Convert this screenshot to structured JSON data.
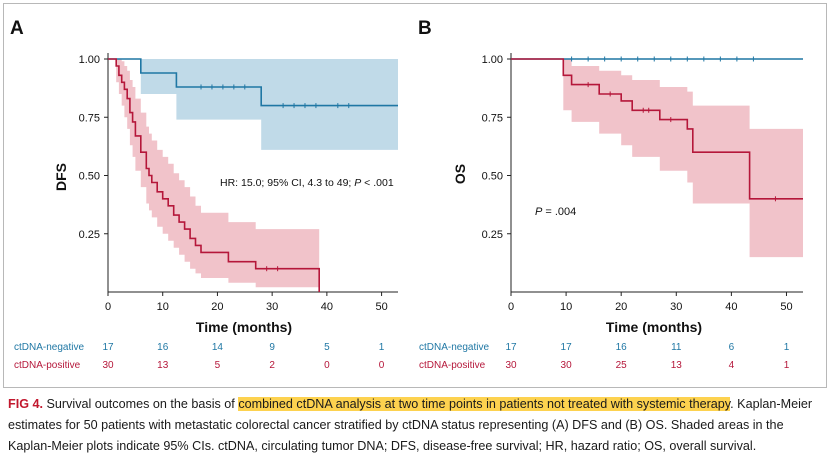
{
  "chart_data": [
    {
      "type": "line",
      "panel_label": "A",
      "ylabel": "DFS",
      "xlabel": "Time (months)",
      "xlim": [
        0,
        53
      ],
      "ylim": [
        0,
        1
      ],
      "xticks": [
        "0",
        "10",
        "20",
        "30",
        "40",
        "50"
      ],
      "yticks": [
        "0.25",
        "0.50",
        "0.75",
        "1.00"
      ],
      "annotation_prefix": "HR: 15.0; 95% CI, 4.3 to 49; ",
      "annotation_p": "P",
      "annotation_suffix": " < .001",
      "series": [
        {
          "name": "ctDNA-negative",
          "color": "#1f77a4",
          "band_color": "#b9d6e6",
          "steps": [
            [
              0,
              1.0
            ],
            [
              6,
              0.94
            ],
            [
              12.5,
              0.88
            ],
            [
              28,
              0.8
            ],
            [
              53,
              0.8
            ]
          ],
          "ci_upper": [
            [
              0,
              1.0
            ],
            [
              53,
              1.0
            ]
          ],
          "ci_lower": [
            [
              0,
              1.0
            ],
            [
              6,
              0.85
            ],
            [
              12.5,
              0.74
            ],
            [
              28,
              0.61
            ],
            [
              53,
              0.61
            ]
          ],
          "censor_times": [
            17,
            19,
            21,
            23,
            25,
            32,
            34,
            36,
            38,
            42,
            44
          ]
        },
        {
          "name": "ctDNA-positive",
          "color": "#b5173a",
          "band_color": "#efbcc4",
          "steps": [
            [
              0,
              1.0
            ],
            [
              1.5,
              0.97
            ],
            [
              2,
              0.93
            ],
            [
              2.5,
              0.9
            ],
            [
              3,
              0.87
            ],
            [
              3.5,
              0.83
            ],
            [
              4,
              0.77
            ],
            [
              4.5,
              0.73
            ],
            [
              5,
              0.67
            ],
            [
              6,
              0.6
            ],
            [
              7,
              0.53
            ],
            [
              7.5,
              0.5
            ],
            [
              8,
              0.47
            ],
            [
              9,
              0.43
            ],
            [
              10,
              0.4
            ],
            [
              11,
              0.37
            ],
            [
              12,
              0.33
            ],
            [
              13,
              0.3
            ],
            [
              14,
              0.27
            ],
            [
              15,
              0.23
            ],
            [
              16,
              0.2
            ],
            [
              17,
              0.17
            ],
            [
              20,
              0.17
            ],
            [
              22,
              0.13
            ],
            [
              25,
              0.13
            ],
            [
              27,
              0.1
            ],
            [
              38,
              0.1
            ],
            [
              38.6,
              0.0
            ]
          ],
          "ci_upper": [
            [
              0,
              1.0
            ],
            [
              1.5,
              1.0
            ],
            [
              2,
              1.0
            ],
            [
              2.5,
              0.99
            ],
            [
              3,
              0.97
            ],
            [
              3.5,
              0.95
            ],
            [
              4,
              0.91
            ],
            [
              4.5,
              0.88
            ],
            [
              5,
              0.83
            ],
            [
              6,
              0.77
            ],
            [
              7,
              0.71
            ],
            [
              7.5,
              0.68
            ],
            [
              8,
              0.65
            ],
            [
              9,
              0.61
            ],
            [
              10,
              0.58
            ],
            [
              11,
              0.55
            ],
            [
              12,
              0.51
            ],
            [
              13,
              0.48
            ],
            [
              14,
              0.45
            ],
            [
              15,
              0.41
            ],
            [
              16,
              0.37
            ],
            [
              17,
              0.34
            ],
            [
              20,
              0.34
            ],
            [
              22,
              0.3
            ],
            [
              25,
              0.3
            ],
            [
              27,
              0.27
            ],
            [
              38.6,
              0.27
            ]
          ],
          "ci_lower": [
            [
              0,
              1.0
            ],
            [
              1.5,
              0.9
            ],
            [
              2,
              0.85
            ],
            [
              2.5,
              0.8
            ],
            [
              3,
              0.75
            ],
            [
              3.5,
              0.7
            ],
            [
              4,
              0.63
            ],
            [
              4.5,
              0.58
            ],
            [
              5,
              0.52
            ],
            [
              6,
              0.45
            ],
            [
              7,
              0.38
            ],
            [
              7.5,
              0.35
            ],
            [
              8,
              0.32
            ],
            [
              9,
              0.28
            ],
            [
              10,
              0.25
            ],
            [
              11,
              0.22
            ],
            [
              12,
              0.19
            ],
            [
              13,
              0.16
            ],
            [
              14,
              0.13
            ],
            [
              15,
              0.1
            ],
            [
              16,
              0.08
            ],
            [
              17,
              0.06
            ],
            [
              20,
              0.06
            ],
            [
              22,
              0.04
            ],
            [
              25,
              0.04
            ],
            [
              27,
              0.02
            ],
            [
              38.6,
              0.02
            ]
          ],
          "censor_times": [
            29,
            31
          ]
        }
      ],
      "risk_table": {
        "times": [
          0,
          10,
          20,
          30,
          40,
          50
        ],
        "rows": [
          {
            "label": "ctDNA-negative",
            "color": "#1f77a4",
            "values": [
              "17",
              "16",
              "14",
              "9",
              "5",
              "1"
            ]
          },
          {
            "label": "ctDNA-positive",
            "color": "#b5173a",
            "values": [
              "30",
              "13",
              "5",
              "2",
              "0",
              "0"
            ]
          }
        ]
      }
    },
    {
      "type": "line",
      "panel_label": "B",
      "ylabel": "OS",
      "xlabel": "Time (months)",
      "xlim": [
        0,
        53
      ],
      "ylim": [
        0,
        1
      ],
      "xticks": [
        "0",
        "10",
        "20",
        "30",
        "40",
        "50"
      ],
      "yticks": [
        "0.25",
        "0.50",
        "0.75",
        "1.00"
      ],
      "annotation_prefix": "",
      "annotation_p": "P",
      "annotation_suffix": " = .004",
      "series": [
        {
          "name": "ctDNA-negative",
          "color": "#1f77a4",
          "band_color": "#b9d6e6",
          "steps": [
            [
              0,
              1.0
            ],
            [
              53,
              1.0
            ]
          ],
          "ci_upper": [
            [
              0,
              1.0
            ],
            [
              53,
              1.0
            ]
          ],
          "ci_lower": [
            [
              0,
              1.0
            ],
            [
              53,
              1.0
            ]
          ],
          "censor_times": [
            11,
            14,
            17,
            20,
            23,
            26,
            29,
            32,
            35,
            38,
            41,
            44
          ]
        },
        {
          "name": "ctDNA-positive",
          "color": "#b5173a",
          "band_color": "#efbcc4",
          "steps": [
            [
              0,
              1.0
            ],
            [
              9.5,
              0.93
            ],
            [
              11,
              0.89
            ],
            [
              16,
              0.85
            ],
            [
              20,
              0.82
            ],
            [
              22,
              0.78
            ],
            [
              26,
              0.78
            ],
            [
              27,
              0.74
            ],
            [
              32,
              0.7
            ],
            [
              33,
              0.6
            ],
            [
              43,
              0.6
            ],
            [
              43.3,
              0.4
            ],
            [
              53,
              0.4
            ]
          ],
          "ci_upper": [
            [
              0,
              1.0
            ],
            [
              9.5,
              1.0
            ],
            [
              11,
              0.97
            ],
            [
              16,
              0.95
            ],
            [
              20,
              0.93
            ],
            [
              22,
              0.91
            ],
            [
              26,
              0.91
            ],
            [
              27,
              0.88
            ],
            [
              32,
              0.86
            ],
            [
              33,
              0.8
            ],
            [
              43,
              0.8
            ],
            [
              43.3,
              0.7
            ],
            [
              53,
              0.7
            ]
          ],
          "ci_lower": [
            [
              0,
              1.0
            ],
            [
              9.5,
              0.78
            ],
            [
              11,
              0.73
            ],
            [
              16,
              0.68
            ],
            [
              20,
              0.63
            ],
            [
              22,
              0.58
            ],
            [
              26,
              0.58
            ],
            [
              27,
              0.52
            ],
            [
              32,
              0.47
            ],
            [
              33,
              0.38
            ],
            [
              43,
              0.38
            ],
            [
              43.3,
              0.15
            ],
            [
              53,
              0.15
            ]
          ],
          "censor_times": [
            14,
            18,
            24,
            25,
            29,
            48
          ]
        }
      ],
      "risk_table": {
        "times": [
          0,
          10,
          20,
          30,
          40,
          50
        ],
        "rows": [
          {
            "label": "ctDNA-negative",
            "color": "#1f77a4",
            "values": [
              "17",
              "17",
              "16",
              "11",
              "6",
              "1"
            ]
          },
          {
            "label": "ctDNA-positive",
            "color": "#b5173a",
            "values": [
              "30",
              "30",
              "25",
              "13",
              "4",
              "1"
            ]
          }
        ]
      }
    }
  ],
  "caption": {
    "label": "FIG 4.",
    "text_before": " Survival outcomes on the basis of ",
    "highlight": "combined ctDNA analysis at two time points in patients not treated with systemic therapy",
    "text_after": ". Kaplan-Meier estimates for 50 patients with metastatic colorectal cancer stratified by ctDNA status representing (A) DFS and (B) OS. Shaded areas in the Kaplan-Meier plots indicate 95% CIs. ctDNA, circulating tumor DNA; DFS, disease-free survival; HR, hazard ratio; OS, overall survival."
  }
}
